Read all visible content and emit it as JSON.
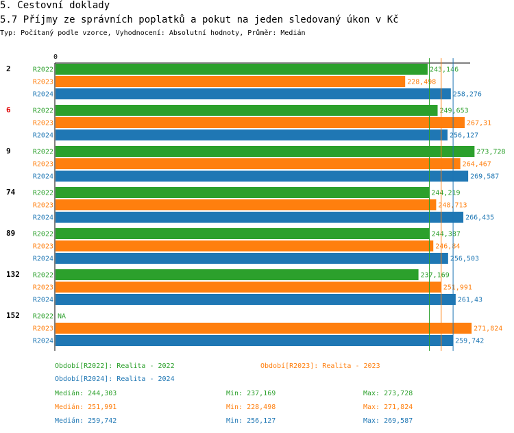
{
  "header": {
    "section": "5. Cestovní doklady",
    "title": "5.7 Příjmy ze správních poplatků a pokut na jeden sledovaný úkon v Kč",
    "subtitle": "Typ: Počítaný podle vzorce, Vyhodnocení: Absolutní hodnoty, Průměr: Medián"
  },
  "colors": {
    "R2022": "#2ca02c",
    "R2023": "#ff7f0e",
    "R2024": "#1f77b4",
    "highlight": "#e00000",
    "text": "#000000"
  },
  "chart_data": {
    "type": "bar",
    "orientation": "horizontal",
    "title": "5.7 Příjmy ze správních poplatků a pokut na jeden sledovaný úkon v Kč",
    "xlim": [
      0,
      300000
    ],
    "x_tick_labels": [
      "0"
    ],
    "series_names": [
      "R2022",
      "R2023",
      "R2024"
    ],
    "groups": [
      {
        "label": "2",
        "highlight": false,
        "bars": [
          {
            "series": "R2022",
            "value": 243146,
            "label": "243,146"
          },
          {
            "series": "R2023",
            "value": 228498,
            "label": "228,498"
          },
          {
            "series": "R2024",
            "value": 258276,
            "label": "258,276"
          }
        ]
      },
      {
        "label": "6",
        "highlight": true,
        "bars": [
          {
            "series": "R2022",
            "value": 249653,
            "label": "249,653"
          },
          {
            "series": "R2023",
            "value": 267310,
            "label": "267,31"
          },
          {
            "series": "R2024",
            "value": 256127,
            "label": "256,127"
          }
        ]
      },
      {
        "label": "9",
        "highlight": false,
        "bars": [
          {
            "series": "R2022",
            "value": 273728,
            "label": "273,728"
          },
          {
            "series": "R2023",
            "value": 264467,
            "label": "264,467"
          },
          {
            "series": "R2024",
            "value": 269587,
            "label": "269,587"
          }
        ]
      },
      {
        "label": "74",
        "highlight": false,
        "bars": [
          {
            "series": "R2022",
            "value": 244219,
            "label": "244,219"
          },
          {
            "series": "R2023",
            "value": 248713,
            "label": "248,713"
          },
          {
            "series": "R2024",
            "value": 266435,
            "label": "266,435"
          }
        ]
      },
      {
        "label": "89",
        "highlight": false,
        "bars": [
          {
            "series": "R2022",
            "value": 244387,
            "label": "244,387"
          },
          {
            "series": "R2023",
            "value": 246840,
            "label": "246,84"
          },
          {
            "series": "R2024",
            "value": 256503,
            "label": "256,503"
          }
        ]
      },
      {
        "label": "132",
        "highlight": false,
        "bars": [
          {
            "series": "R2022",
            "value": 237169,
            "label": "237,169"
          },
          {
            "series": "R2023",
            "value": 251991,
            "label": "251,991"
          },
          {
            "series": "R2024",
            "value": 261430,
            "label": "261,43"
          }
        ]
      },
      {
        "label": "152",
        "highlight": false,
        "bars": [
          {
            "series": "R2022",
            "value": null,
            "label": "NA"
          },
          {
            "series": "R2023",
            "value": 271824,
            "label": "271,824"
          },
          {
            "series": "R2024",
            "value": 259742,
            "label": "259,742"
          }
        ]
      }
    ],
    "median_lines": [
      {
        "series": "R2022",
        "value": 244303
      },
      {
        "series": "R2023",
        "value": 251991
      },
      {
        "series": "R2024",
        "value": 259742
      }
    ]
  },
  "legend": {
    "r2022": "Období[R2022]: Realita - 2022",
    "r2023": "Období[R2023]: Realita - 2023",
    "r2024": "Období[R2024]: Realita - 2024"
  },
  "stats": {
    "r2022": {
      "median": "Medián: 244,303",
      "min": "Min: 237,169",
      "max": "Max: 273,728"
    },
    "r2023": {
      "median": "Medián: 251,991",
      "min": "Min: 228,498",
      "max": "Max: 271,824"
    },
    "r2024": {
      "median": "Medián: 259,742",
      "min": "Min: 256,127",
      "max": "Max: 269,587"
    }
  }
}
